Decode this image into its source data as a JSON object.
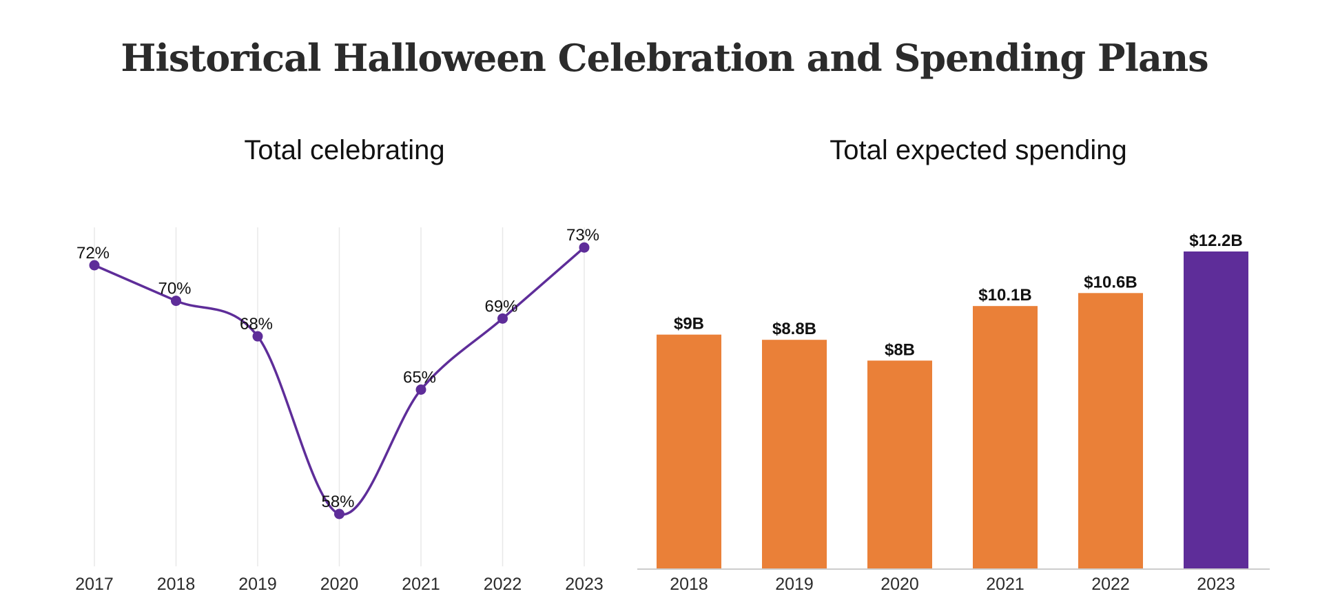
{
  "title": "Historical Halloween Celebration and Spending Plans",
  "colors": {
    "line": "#5e2d99",
    "bar": "#ea8038",
    "bar_highlight": "#5e2d99",
    "grid": "#e8e8e8",
    "baseline": "#cccccc"
  },
  "chart_data": [
    {
      "type": "line",
      "title": "Total celebrating",
      "x": [
        "2017",
        "2018",
        "2019",
        "2020",
        "2021",
        "2022",
        "2023"
      ],
      "series": [
        {
          "values": [
            72,
            70,
            68,
            58,
            65,
            69,
            73
          ]
        }
      ],
      "data_labels": [
        "72%",
        "70%",
        "68%",
        "58%",
        "65%",
        "69%",
        "73%"
      ],
      "ylim": [
        50,
        74
      ],
      "grid": "vertical"
    },
    {
      "type": "bar",
      "title": "Total expected spending",
      "categories": [
        "2018",
        "2019",
        "2020",
        "2021",
        "2022",
        "2023"
      ],
      "values": [
        9,
        8.8,
        8,
        10.1,
        10.6,
        12.2
      ],
      "data_labels": [
        "$9B",
        "$8.8B",
        "$8B",
        "$10.1B",
        "$10.6B",
        "$12.2B"
      ],
      "highlight_category": "2023",
      "ylim": [
        0,
        12.2
      ]
    }
  ]
}
